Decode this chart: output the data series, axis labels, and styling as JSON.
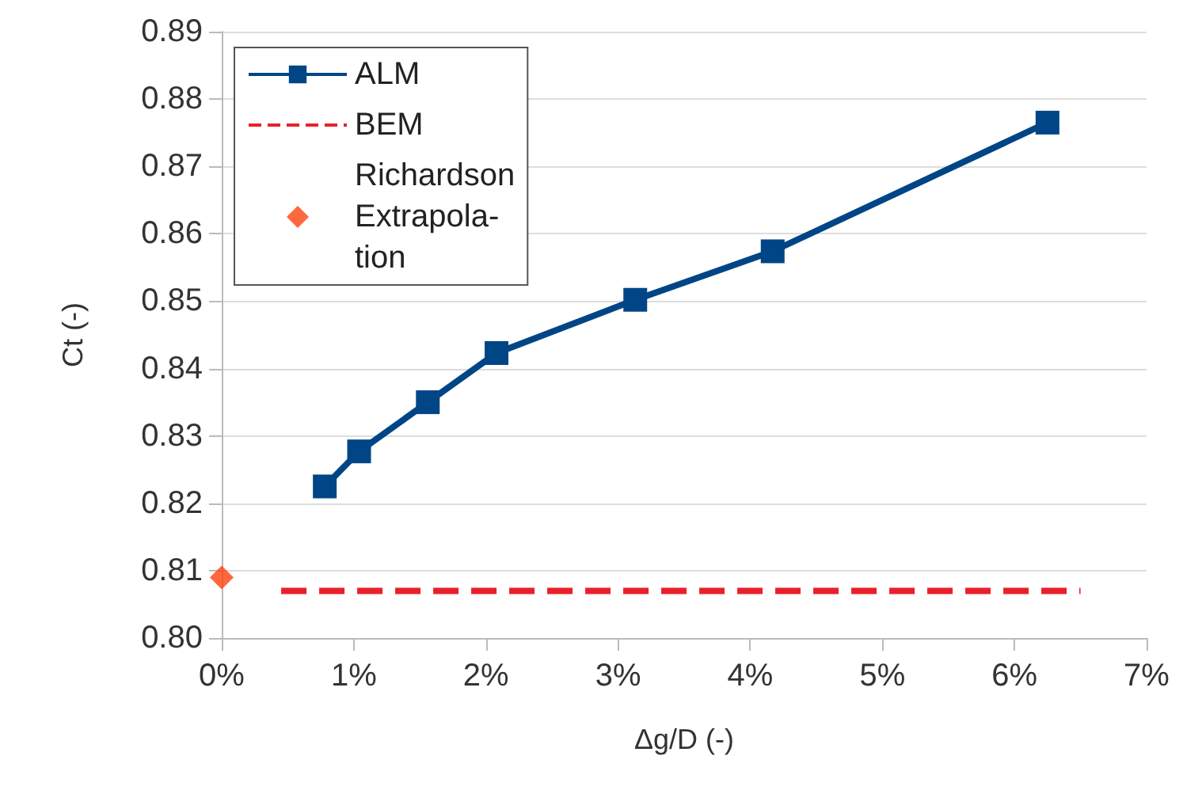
{
  "chart_data": {
    "type": "line",
    "xlabel": "Δg/D (-)",
    "ylabel": "Ct (-)",
    "xlim": [
      0,
      7
    ],
    "xticks": [
      {
        "value": 0,
        "label": "0%"
      },
      {
        "value": 1,
        "label": "1%"
      },
      {
        "value": 2,
        "label": "2%"
      },
      {
        "value": 3,
        "label": "3%"
      },
      {
        "value": 4,
        "label": "4%"
      },
      {
        "value": 5,
        "label": "5%"
      },
      {
        "value": 6,
        "label": "6%"
      },
      {
        "value": 7,
        "label": "7%"
      }
    ],
    "ylim": [
      0.8,
      0.89
    ],
    "yticks": [
      {
        "value": 0.8,
        "label": "0.80"
      },
      0.81,
      0.82,
      0.83,
      0.84,
      0.85,
      0.86,
      0.87,
      0.88,
      0.89
    ],
    "grid": "y",
    "legend": "top left",
    "series": [
      {
        "name": "ALM",
        "color": "#004586",
        "marker": "square",
        "line_style": "solid",
        "x": [
          0.78,
          1.04,
          1.56,
          2.08,
          3.13,
          4.17,
          6.25
        ],
        "values": [
          0.8225,
          0.8277,
          0.835,
          0.8423,
          0.8502,
          0.8574,
          0.8765
        ]
      },
      {
        "name": "BEM",
        "color": "#e8202a",
        "marker": "none",
        "line_style": "dashed",
        "x": [
          0.45,
          6.5
        ],
        "values": [
          0.807,
          0.807
        ]
      },
      {
        "name": "Richardson\nExtrapola-\ntion",
        "type": "scatter",
        "color": "#ff420e",
        "marker": "diamond",
        "x": [
          0
        ],
        "values": [
          0.809
        ]
      }
    ]
  }
}
